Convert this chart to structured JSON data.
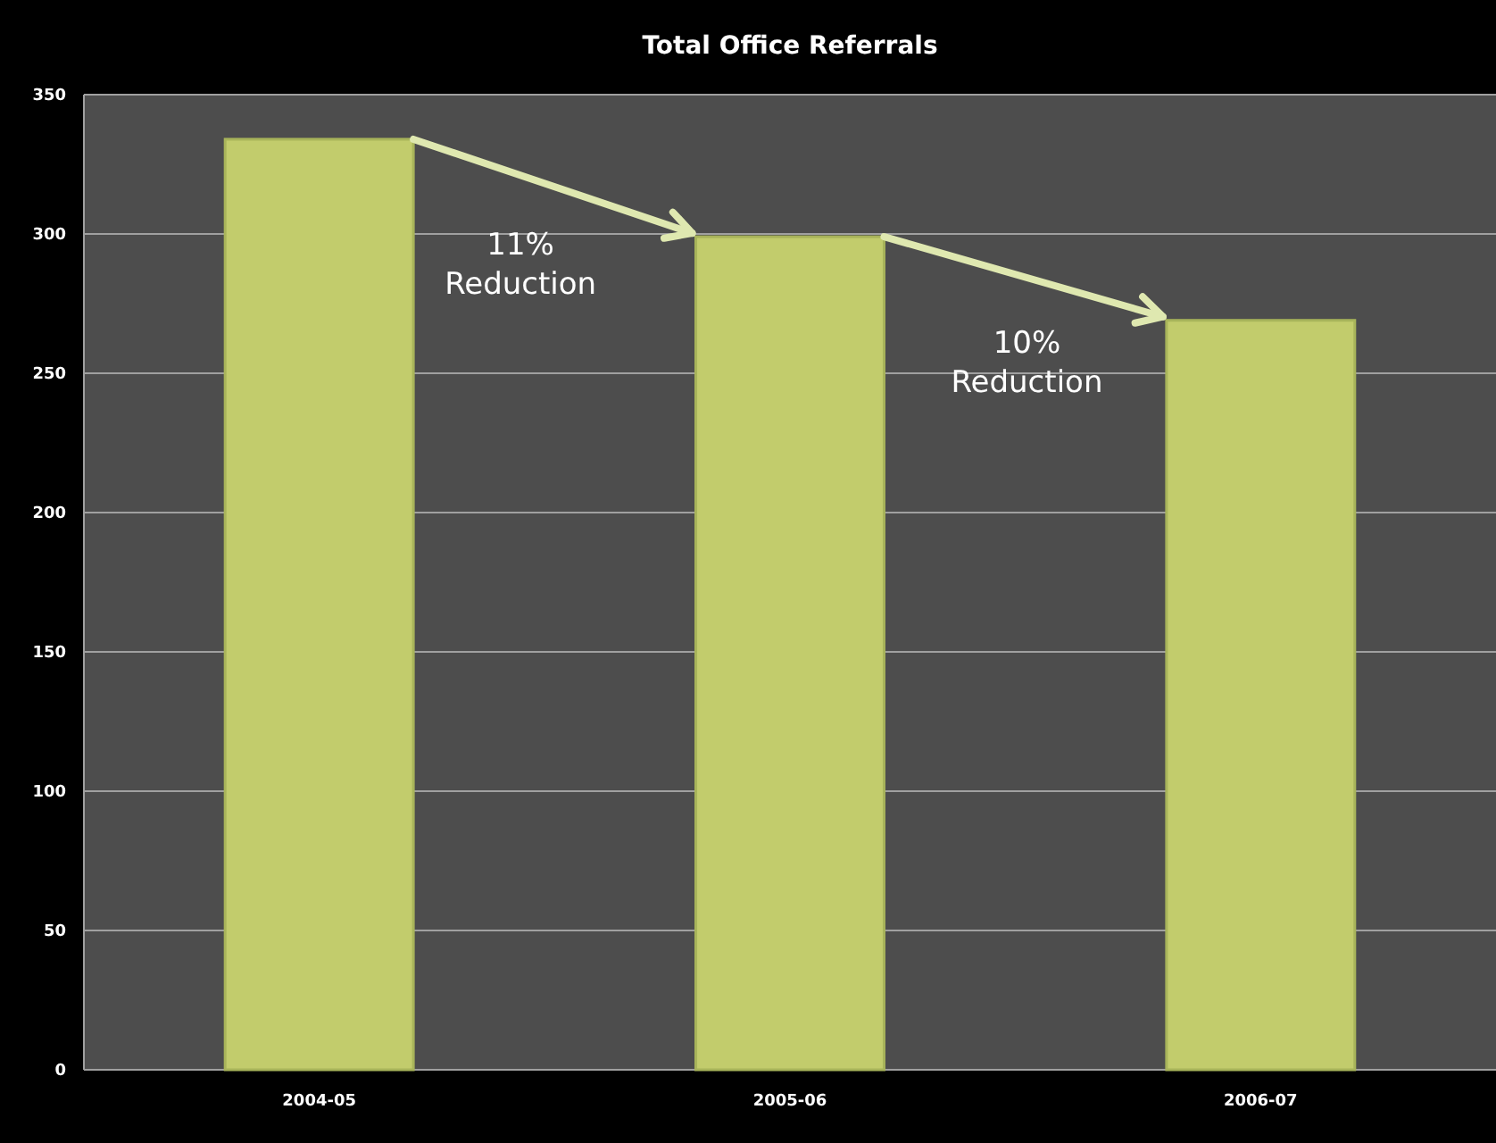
{
  "chart_data": {
    "type": "bar",
    "title": "Total Office Referrals",
    "categories": [
      "2004-05",
      "2005-06",
      "2006-07"
    ],
    "values": [
      334,
      299,
      269
    ],
    "color": "#c2cc6c",
    "ylim": [
      0,
      350
    ],
    "yticks": [
      0,
      50,
      100,
      150,
      200,
      250,
      300,
      350
    ],
    "grid": "y",
    "annotations": [
      "11% Reduction",
      "10% Reduction"
    ]
  }
}
